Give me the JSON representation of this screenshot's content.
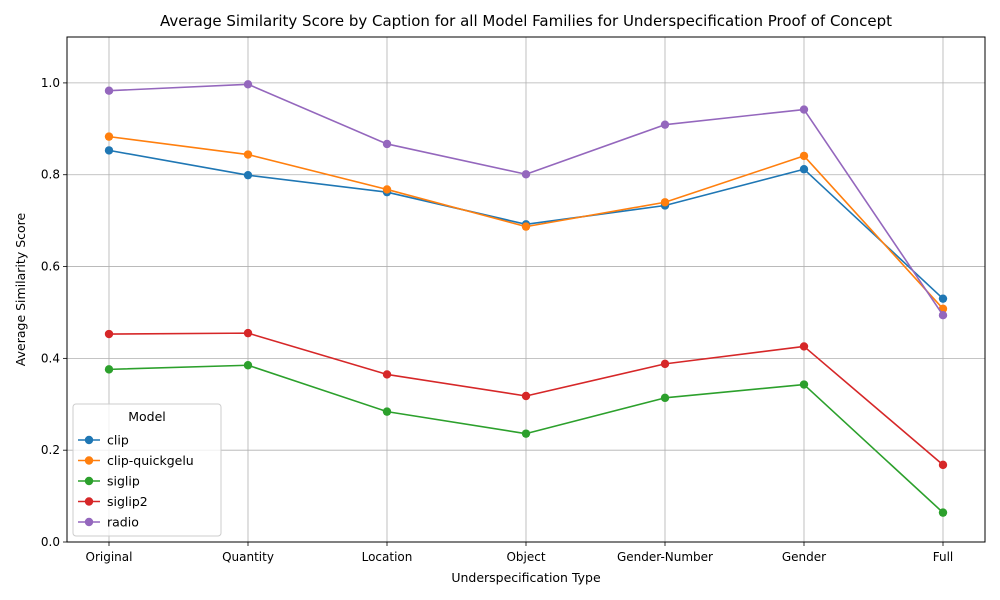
{
  "chart_data": {
    "type": "line",
    "title": "Average Similarity Score by Caption for all Model Families for Underspecification Proof of Concept",
    "xlabel": "Underspecification Type",
    "ylabel": "Average Similarity Score",
    "categories": [
      "Original",
      "Quantity",
      "Location",
      "Object",
      "Gender-Number",
      "Gender",
      "Full"
    ],
    "ylim": [
      0.0,
      1.1
    ],
    "yticks": [
      "0.0",
      "0.2",
      "0.4",
      "0.6",
      "0.8",
      "1.0"
    ],
    "grid": true,
    "legend": {
      "title": "Model",
      "placement": "lower-left"
    },
    "series": [
      {
        "name": "clip",
        "color": "#1f77b4",
        "values": [
          0.853,
          0.799,
          0.762,
          0.692,
          0.733,
          0.812,
          0.53
        ]
      },
      {
        "name": "clip-quickgelu",
        "color": "#ff7f0e",
        "values": [
          0.883,
          0.844,
          0.768,
          0.687,
          0.74,
          0.841,
          0.508
        ]
      },
      {
        "name": "siglip",
        "color": "#2ca02c",
        "values": [
          0.376,
          0.385,
          0.284,
          0.236,
          0.314,
          0.343,
          0.064
        ]
      },
      {
        "name": "siglip2",
        "color": "#d62728",
        "values": [
          0.453,
          0.455,
          0.365,
          0.318,
          0.388,
          0.426,
          0.168
        ]
      },
      {
        "name": "radio",
        "color": "#9467bd",
        "values": [
          0.983,
          0.997,
          0.867,
          0.801,
          0.909,
          0.942,
          0.494
        ]
      }
    ]
  }
}
